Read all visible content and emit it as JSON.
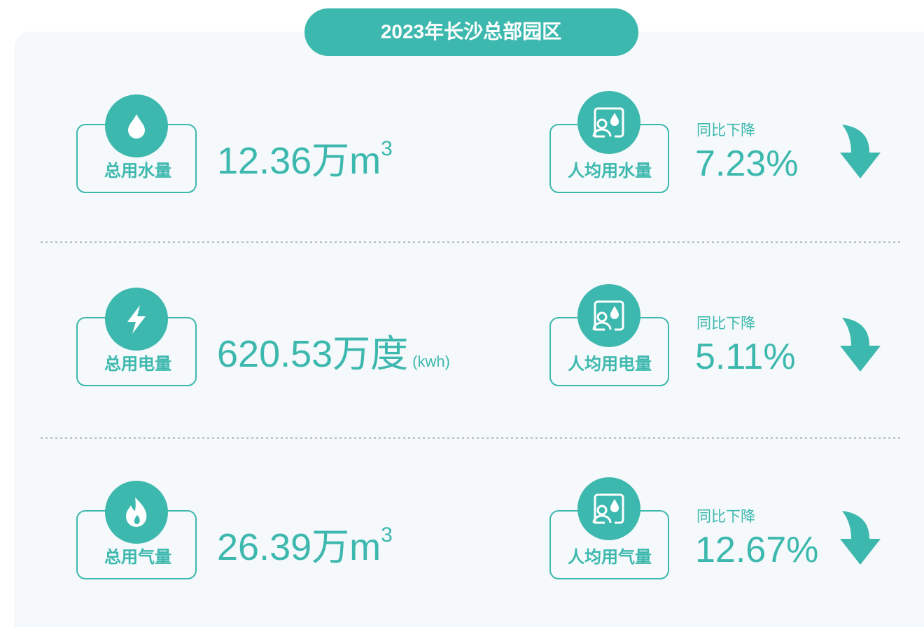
{
  "header": {
    "title": "2023年长沙总部园区"
  },
  "rows": [
    {
      "total_label": "总用水量",
      "value": "12.36",
      "unit": "万m",
      "unit_sup": "3",
      "per_capita_label": "人均用水量",
      "change_label": "同比下降",
      "change": "7.23%"
    },
    {
      "total_label": "总用电量",
      "value": "620.53",
      "unit": "万度",
      "unit_note": "(kwh)",
      "per_capita_label": "人均用电量",
      "change_label": "同比下降",
      "change": "5.11%"
    },
    {
      "total_label": "总用气量",
      "value": "26.39",
      "unit": "万m",
      "unit_sup": "3",
      "per_capita_label": "人均用气量",
      "change_label": "同比下降",
      "change": "12.67%"
    }
  ]
}
